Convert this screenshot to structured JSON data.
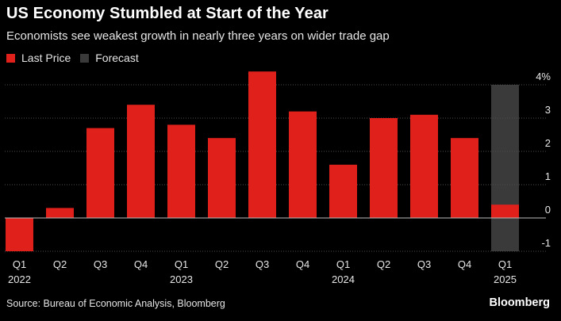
{
  "title": "US Economy Stumbled at Start of the Year",
  "subtitle": "Economists see weakest growth in nearly three years on wider trade gap",
  "source": "Source: Bureau of Economic Analysis, Bloomberg",
  "brand": "Bloomberg",
  "colors": {
    "last_price": "#e0201b",
    "forecast": "#3a3a3a",
    "background": "#000000",
    "grid": "#555555"
  },
  "chart_data": {
    "type": "bar",
    "title": "US Economy Stumbled at Start of the Year",
    "subtitle": "Economists see weakest growth in nearly three years on wider trade gap",
    "legend": [
      "Last Price",
      "Forecast"
    ],
    "legend_placement": "top-left",
    "categories": [
      "Q1 2022",
      "Q2",
      "Q3",
      "Q4",
      "Q1 2023",
      "Q2",
      "Q3",
      "Q4",
      "Q1 2024",
      "Q2",
      "Q3",
      "Q4",
      "Q1 2025"
    ],
    "tick_labels": [
      {
        "q": "Q1",
        "year": "2022"
      },
      {
        "q": "Q2",
        "year": ""
      },
      {
        "q": "Q3",
        "year": ""
      },
      {
        "q": "Q4",
        "year": ""
      },
      {
        "q": "Q1",
        "year": "2023"
      },
      {
        "q": "Q2",
        "year": ""
      },
      {
        "q": "Q3",
        "year": ""
      },
      {
        "q": "Q4",
        "year": ""
      },
      {
        "q": "Q1",
        "year": "2024"
      },
      {
        "q": "Q2",
        "year": ""
      },
      {
        "q": "Q3",
        "year": ""
      },
      {
        "q": "Q4",
        "year": ""
      },
      {
        "q": "Q1",
        "year": "2025"
      }
    ],
    "series": [
      {
        "name": "Last Price",
        "values": [
          -1.0,
          0.3,
          2.7,
          3.4,
          2.8,
          2.4,
          4.4,
          3.2,
          1.6,
          3.0,
          3.1,
          2.4,
          0.4
        ]
      },
      {
        "name": "Forecast",
        "values": [
          null,
          null,
          null,
          null,
          null,
          null,
          null,
          null,
          null,
          null,
          null,
          null,
          4.0
        ]
      }
    ],
    "forecast_lower": -1.0,
    "ylim": [
      -1,
      4
    ],
    "yticks": [
      4,
      3,
      2,
      1,
      0,
      -1
    ],
    "ytick_labels": [
      "4%",
      "3",
      "2",
      "1",
      "0",
      "-1"
    ],
    "grid": true
  }
}
